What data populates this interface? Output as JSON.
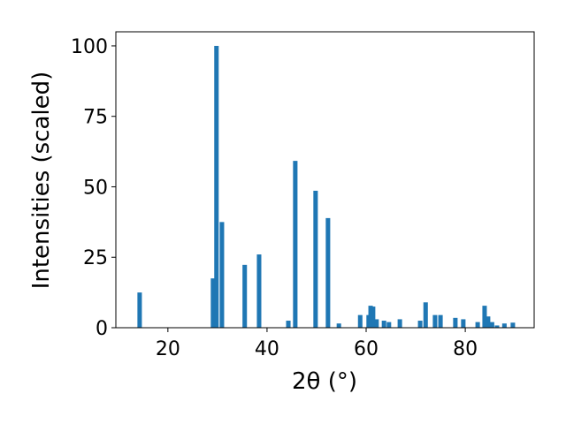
{
  "chart_data": {
    "type": "bar",
    "xlabel": "2θ (°)",
    "ylabel": "Intensities (scaled)",
    "color": "#1f77b4",
    "bar_width": 0.9,
    "x": [
      14.3,
      29.1,
      29.8,
      30.9,
      35.5,
      38.4,
      44.3,
      45.7,
      49.8,
      52.3,
      54.5,
      58.8,
      60.5,
      60.9,
      61.4,
      62.1,
      63.6,
      64.6,
      66.8,
      70.9,
      72.0,
      73.9,
      75.0,
      78.0,
      79.6,
      82.5,
      83.9,
      84.6,
      85.4,
      86.4,
      87.9,
      89.6
    ],
    "values": [
      12.5,
      17.5,
      100,
      37.5,
      22.3,
      26,
      2.5,
      59.2,
      48.6,
      38.9,
      1.5,
      4.5,
      4.5,
      7.8,
      7.5,
      3,
      2.5,
      2,
      3,
      2.5,
      9,
      4.5,
      4.5,
      3.5,
      3,
      2,
      7.8,
      4,
      2,
      0.8,
      1.5,
      1.8
    ],
    "xlim": [
      9.5,
      93.9
    ],
    "ylim": [
      0,
      105
    ],
    "xticks": [
      20,
      40,
      60,
      80
    ],
    "yticks": [
      0,
      25,
      50,
      75,
      100
    ]
  }
}
